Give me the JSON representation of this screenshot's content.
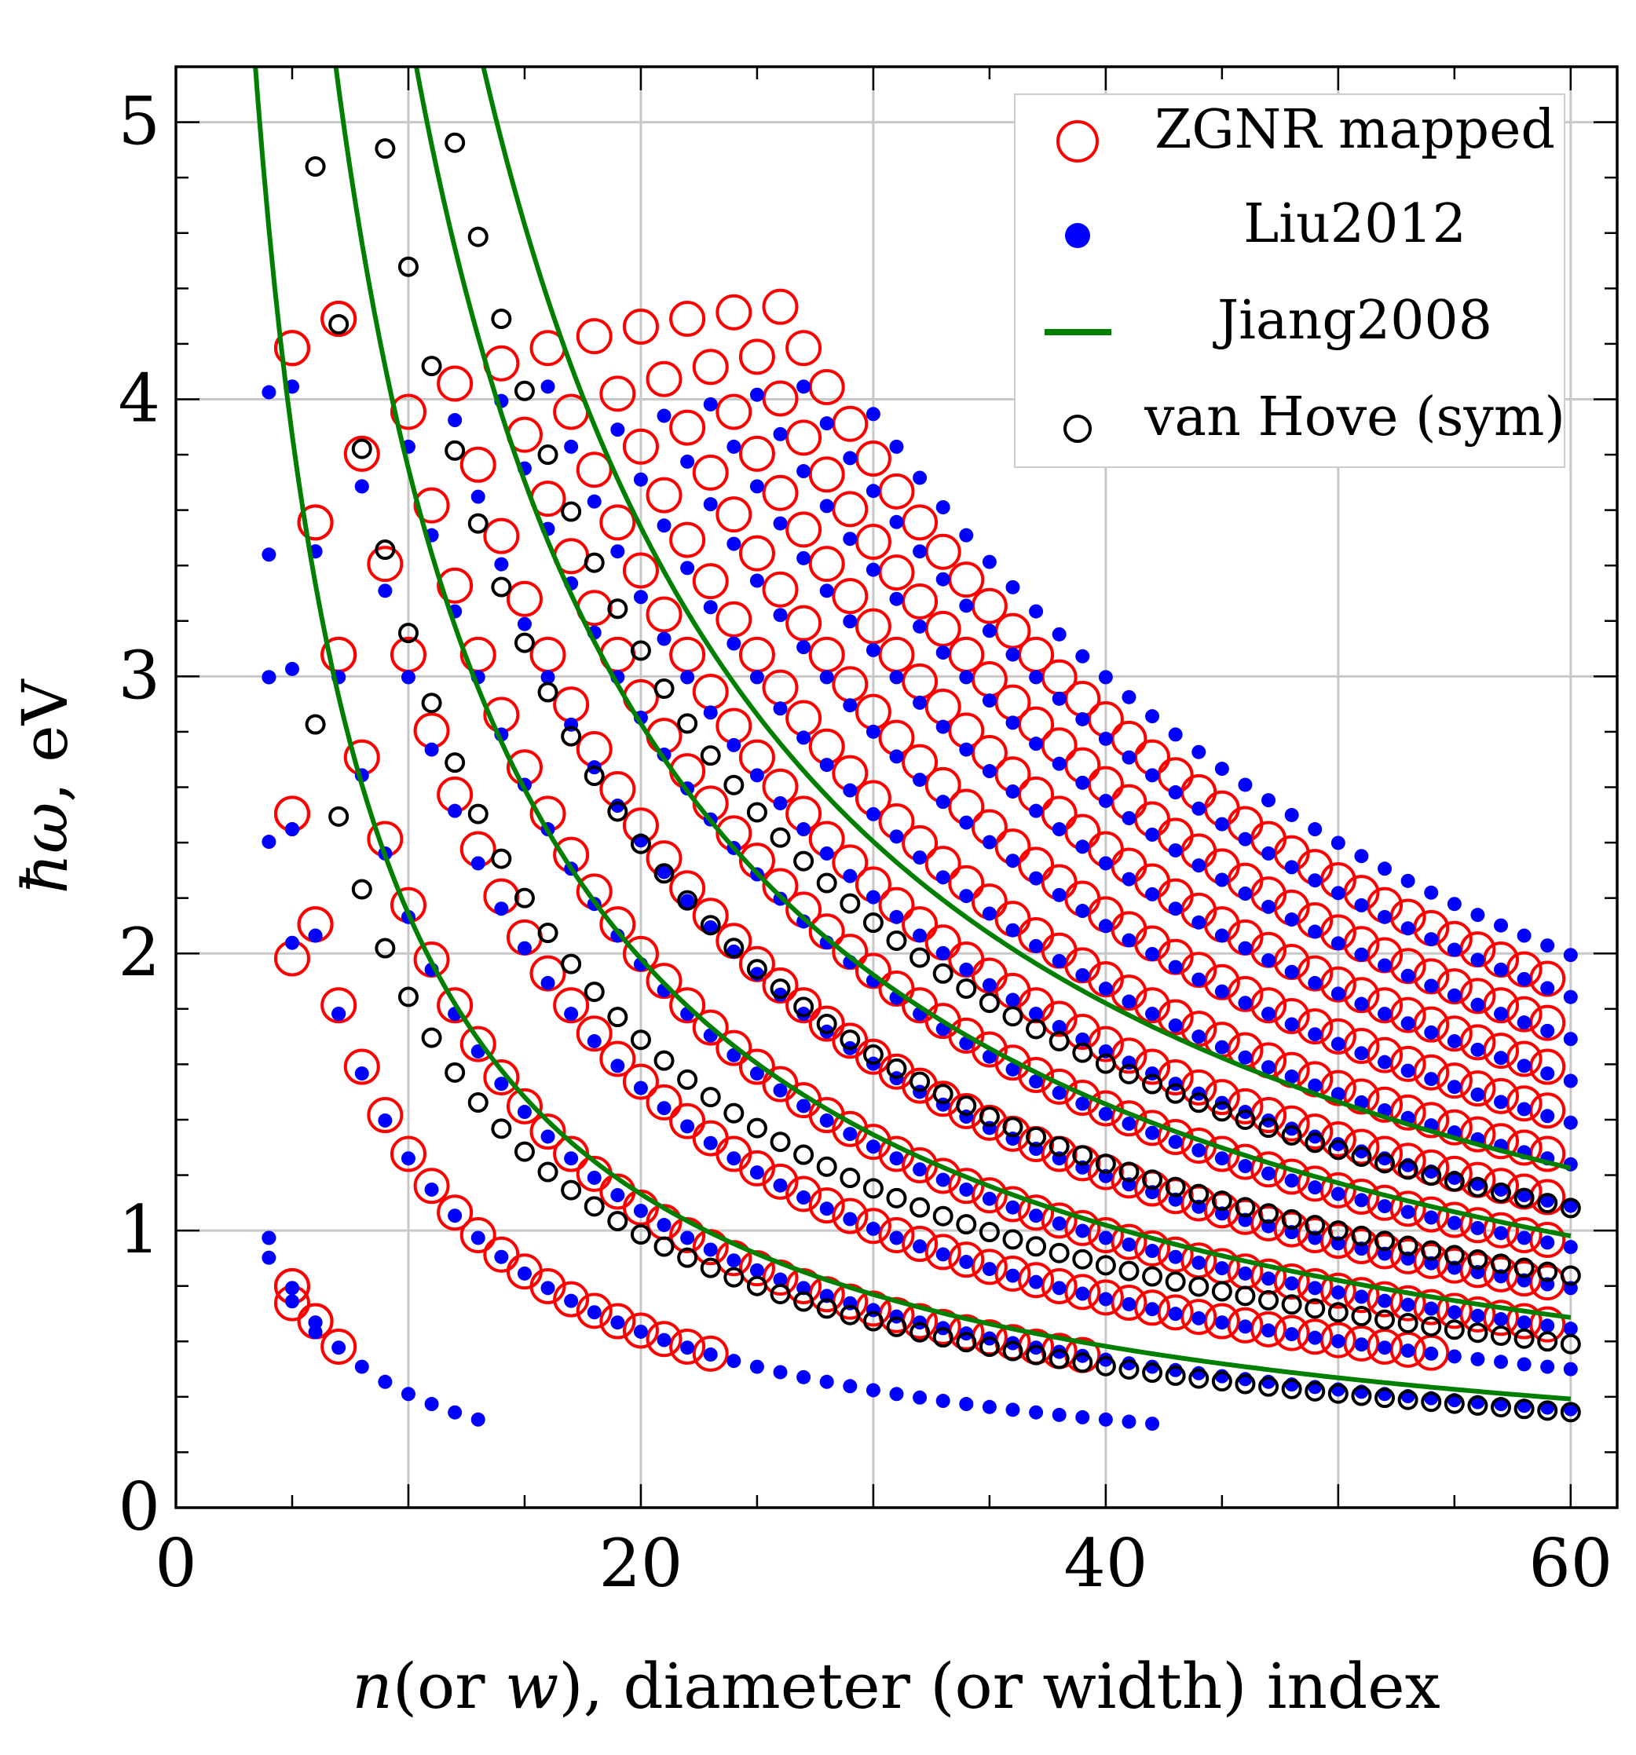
{
  "chart_data": {
    "type": "scatter",
    "title": "",
    "xlabel": "n(or w), diameter (or width) index",
    "xlabel_parts": [
      "n",
      "(or ",
      "w",
      "), diameter (or width) index"
    ],
    "ylabel": "ħω, eV",
    "ylabel_parts": [
      "ħω",
      ", eV"
    ],
    "xlim": [
      0,
      62
    ],
    "ylim": [
      0,
      5.2
    ],
    "xticks": [
      0,
      20,
      40,
      60
    ],
    "yticks": [
      0,
      1,
      2,
      3,
      4,
      5
    ],
    "grid": true,
    "legend_position": "top-right",
    "series": [
      {
        "name": "ZGNR mapped",
        "kind": "open-circle-large",
        "color": "#ff0000",
        "model": "zgnr",
        "x_range": [
          5,
          59
        ],
        "bands": 13
      },
      {
        "name": "Liu2012",
        "kind": "filled-dot",
        "color": "#0000ff",
        "model": "liu",
        "x_range": [
          4,
          60
        ],
        "bands": 14
      },
      {
        "name": "Jiang2008",
        "kind": "line",
        "color": "#007f00",
        "model": "jiang",
        "x_range": [
          3,
          60
        ],
        "coefficients": [
          24,
          42,
          60,
          75
        ]
      },
      {
        "name": "van Hove (sym)",
        "kind": "open-circle-small",
        "color": "#000000",
        "model": "vanhove",
        "x_range": [
          6,
          60
        ],
        "coefficients": [
          21.2,
          36.3,
          51.5,
          66.5
        ]
      }
    ]
  }
}
